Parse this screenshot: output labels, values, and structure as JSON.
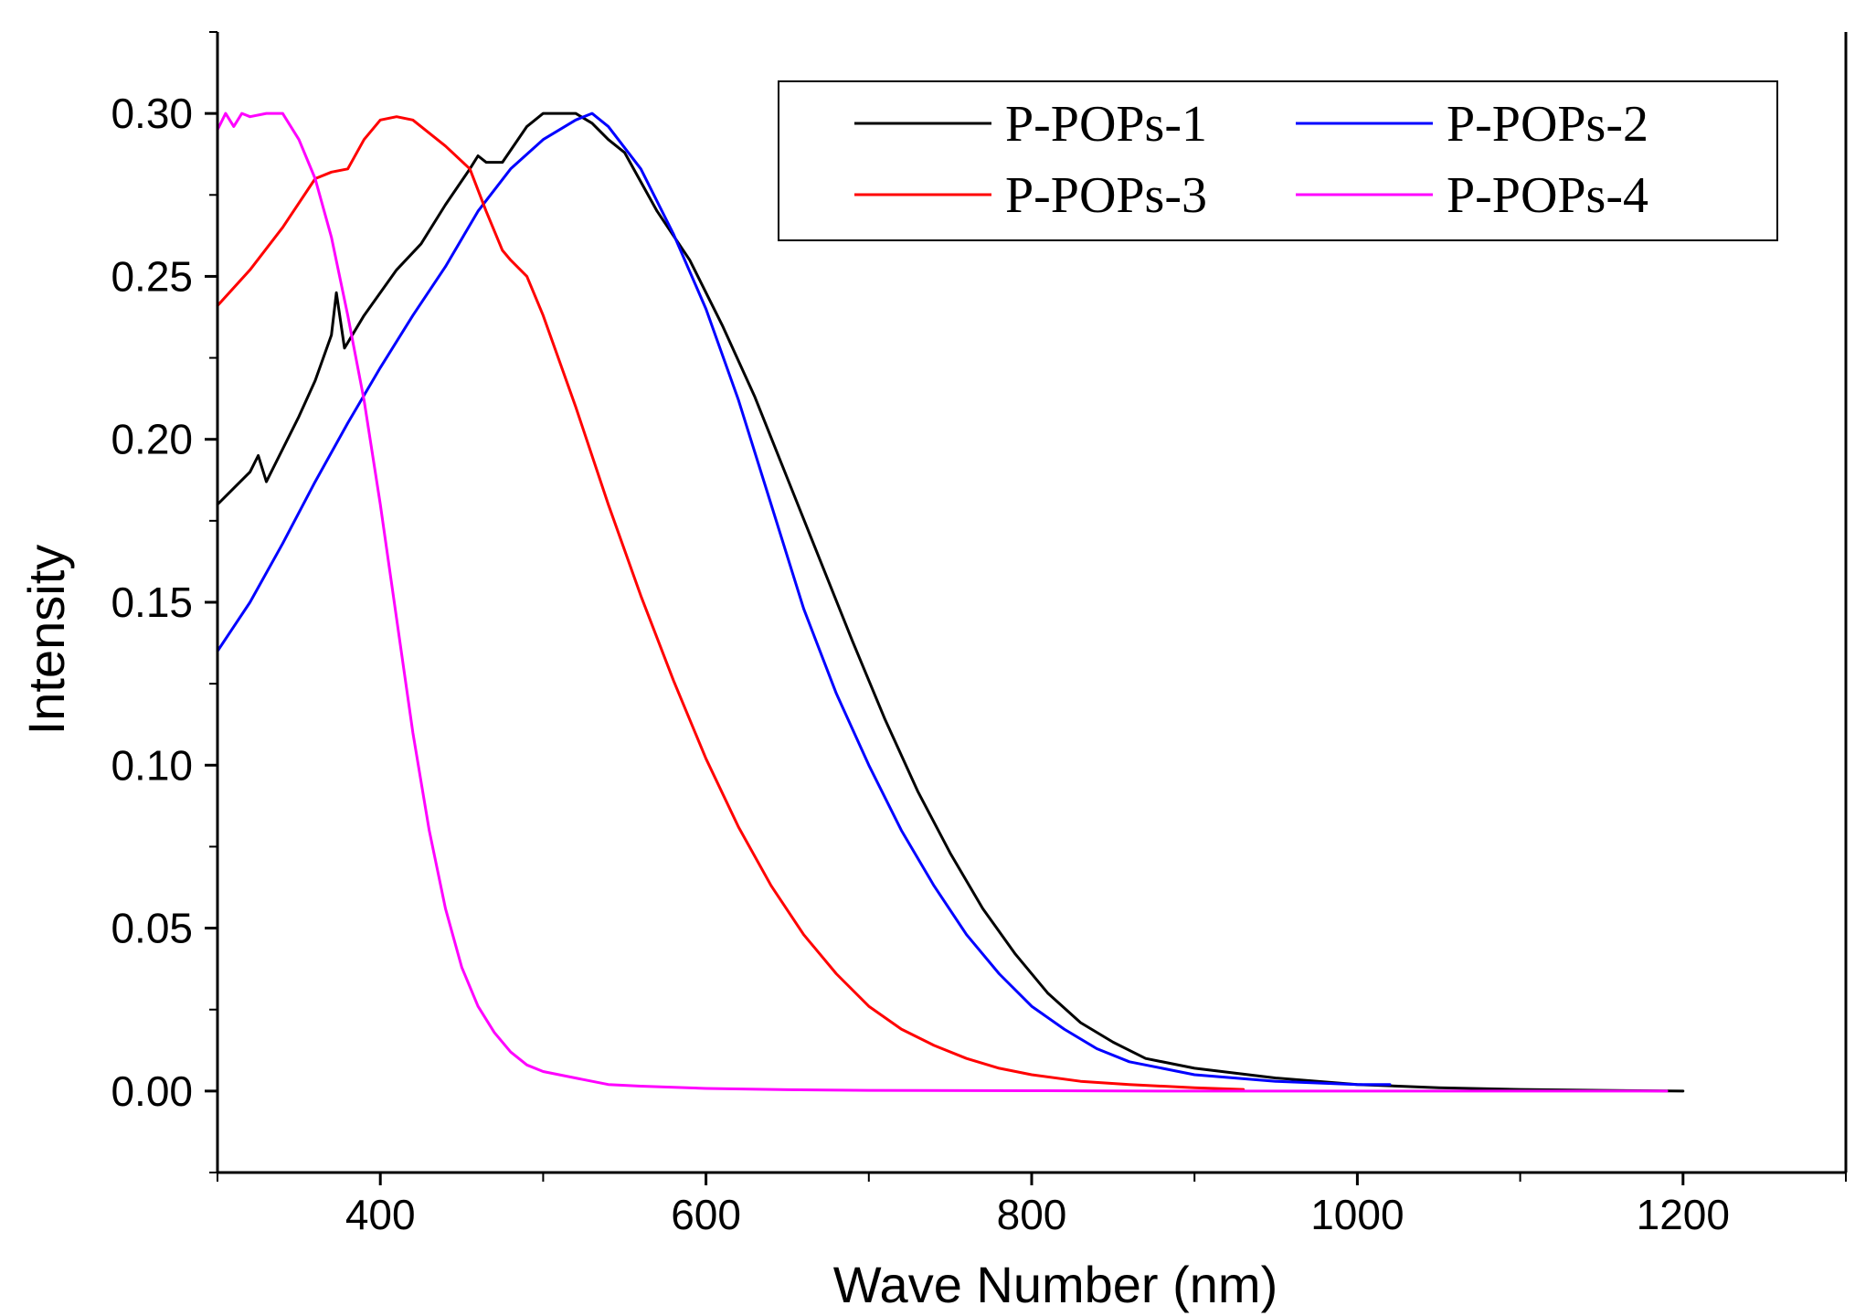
{
  "chart_data": {
    "type": "line",
    "title": "",
    "xlabel": "Wave Number (nm)",
    "ylabel": "Intensity",
    "xlim": [
      300,
      1300
    ],
    "ylim": [
      -0.025,
      0.325
    ],
    "x_major_ticks": [
      400,
      600,
      800,
      1000,
      1200
    ],
    "x_minor_ticks": [
      300,
      500,
      700,
      900,
      1100,
      1300
    ],
    "x_tick_labels": [
      "400",
      "600",
      "800",
      "1000",
      "1200"
    ],
    "y_major_ticks": [
      0.0,
      0.05,
      0.1,
      0.15,
      0.2,
      0.25,
      0.3
    ],
    "y_minor_ticks": [
      -0.025,
      0.025,
      0.075,
      0.125,
      0.175,
      0.225,
      0.275,
      0.325
    ],
    "y_tick_labels": [
      "0.00",
      "0.05",
      "0.10",
      "0.15",
      "0.20",
      "0.25",
      "0.30"
    ],
    "grid": false,
    "legend_position": "top-right",
    "series": [
      {
        "name": "P-POPs-1",
        "color": "#000000",
        "x": [
          300,
          310,
          320,
          325,
          330,
          340,
          350,
          360,
          370,
          373,
          378,
          390,
          410,
          425,
          440,
          455,
          460,
          465,
          475,
          490,
          500,
          520,
          530,
          540,
          550,
          570,
          590,
          610,
          630,
          650,
          670,
          690,
          710,
          730,
          750,
          770,
          790,
          810,
          830,
          850,
          870,
          900,
          950,
          1000,
          1050,
          1100,
          1150,
          1200
        ],
        "y": [
          0.18,
          0.185,
          0.19,
          0.195,
          0.187,
          0.197,
          0.207,
          0.218,
          0.232,
          0.245,
          0.228,
          0.238,
          0.252,
          0.26,
          0.272,
          0.283,
          0.287,
          0.285,
          0.285,
          0.296,
          0.3,
          0.3,
          0.297,
          0.292,
          0.288,
          0.27,
          0.255,
          0.235,
          0.213,
          0.188,
          0.163,
          0.138,
          0.114,
          0.092,
          0.073,
          0.056,
          0.042,
          0.03,
          0.021,
          0.015,
          0.01,
          0.007,
          0.004,
          0.002,
          0.001,
          0.0005,
          0.0002,
          0.0
        ]
      },
      {
        "name": "P-POPs-2",
        "color": "#0000ff",
        "x": [
          300,
          320,
          340,
          360,
          380,
          400,
          420,
          440,
          460,
          480,
          500,
          520,
          530,
          540,
          560,
          580,
          600,
          620,
          640,
          660,
          680,
          700,
          720,
          740,
          760,
          780,
          800,
          820,
          840,
          860,
          880,
          900,
          950,
          1000,
          1020
        ],
        "y": [
          0.135,
          0.15,
          0.168,
          0.187,
          0.205,
          0.222,
          0.238,
          0.253,
          0.27,
          0.283,
          0.292,
          0.298,
          0.3,
          0.296,
          0.283,
          0.263,
          0.24,
          0.212,
          0.18,
          0.148,
          0.122,
          0.1,
          0.08,
          0.063,
          0.048,
          0.036,
          0.026,
          0.019,
          0.013,
          0.009,
          0.007,
          0.005,
          0.003,
          0.002,
          0.002
        ]
      },
      {
        "name": "P-POPs-3",
        "color": "#ff0000",
        "x": [
          300,
          320,
          340,
          360,
          370,
          380,
          390,
          400,
          410,
          420,
          440,
          455,
          465,
          475,
          480,
          490,
          500,
          520,
          540,
          560,
          580,
          600,
          620,
          640,
          660,
          680,
          700,
          720,
          740,
          760,
          780,
          800,
          830,
          860,
          900,
          930
        ],
        "y": [
          0.241,
          0.252,
          0.265,
          0.28,
          0.282,
          0.283,
          0.292,
          0.298,
          0.299,
          0.298,
          0.29,
          0.283,
          0.27,
          0.258,
          0.255,
          0.25,
          0.238,
          0.21,
          0.18,
          0.152,
          0.126,
          0.102,
          0.081,
          0.063,
          0.048,
          0.036,
          0.026,
          0.019,
          0.014,
          0.01,
          0.007,
          0.005,
          0.003,
          0.002,
          0.001,
          0.0005
        ]
      },
      {
        "name": "P-POPs-4",
        "color": "#ff00ff",
        "x": [
          300,
          305,
          310,
          315,
          320,
          330,
          340,
          350,
          360,
          370,
          380,
          390,
          400,
          410,
          420,
          430,
          440,
          450,
          460,
          470,
          480,
          490,
          500,
          520,
          540,
          560,
          600,
          650,
          700,
          800,
          900,
          1000,
          1100,
          1190
        ],
        "y": [
          0.295,
          0.3,
          0.296,
          0.3,
          0.299,
          0.3,
          0.3,
          0.292,
          0.28,
          0.262,
          0.238,
          0.212,
          0.18,
          0.145,
          0.11,
          0.08,
          0.056,
          0.038,
          0.026,
          0.018,
          0.012,
          0.008,
          0.006,
          0.004,
          0.002,
          0.0015,
          0.0008,
          0.0004,
          0.0002,
          0.0001,
          0.0,
          0.0,
          0.0,
          0.0
        ]
      }
    ]
  }
}
